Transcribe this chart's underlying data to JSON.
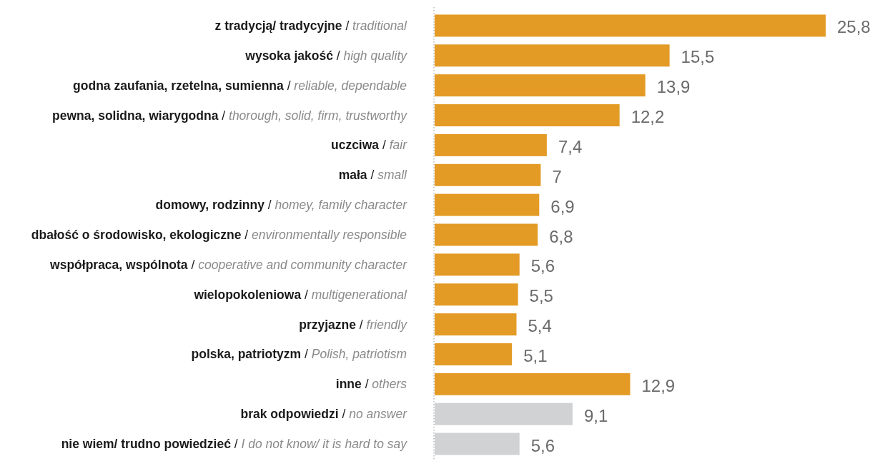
{
  "chart_data": {
    "type": "bar",
    "orientation": "horizontal",
    "categories": [
      "z tradycją/ tradycyjne / traditional",
      "wysoka jakość / high quality",
      "godna zaufania, rzetelna, sumienna / reliable, dependable",
      "pewna, solidna, wiarygodna / thorough, solid, firm, trustworthy",
      "uczciwa / fair",
      "mała / small",
      "domowy, rodzinny / homey, family character",
      "dbałość o środowisko, ekologiczne / environmentally responsible",
      "współpraca, wspólnota / cooperative and community character",
      "wielopokoleniowa / multigenerational",
      "przyjazne / friendly",
      "polska, patriotyzm / Polish, patriotism",
      "inne / others",
      "brak odpowiedzi / no answer",
      "nie wiem/ trudno powiedzieć / I do not know/ it is hard to say"
    ],
    "values": [
      25.8,
      15.5,
      13.9,
      12.2,
      7.4,
      7,
      6.9,
      6.8,
      5.6,
      5.5,
      5.4,
      5.1,
      12.9,
      9.1,
      5.6
    ],
    "value_labels": [
      "25,8",
      "15,5",
      "13,9",
      "12,2",
      "7,4",
      "7",
      "6,9",
      "6,8",
      "5,6",
      "5,5",
      "5,4",
      "5,1",
      "12,9",
      "9,1",
      "5,6"
    ],
    "colors": [
      "#e39b25",
      "#e39b25",
      "#e39b25",
      "#e39b25",
      "#e39b25",
      "#e39b25",
      "#e39b25",
      "#e39b25",
      "#e39b25",
      "#e39b25",
      "#e39b25",
      "#e39b25",
      "#e39b25",
      "#d1d2d4",
      "#d1d2d4"
    ]
  }
}
